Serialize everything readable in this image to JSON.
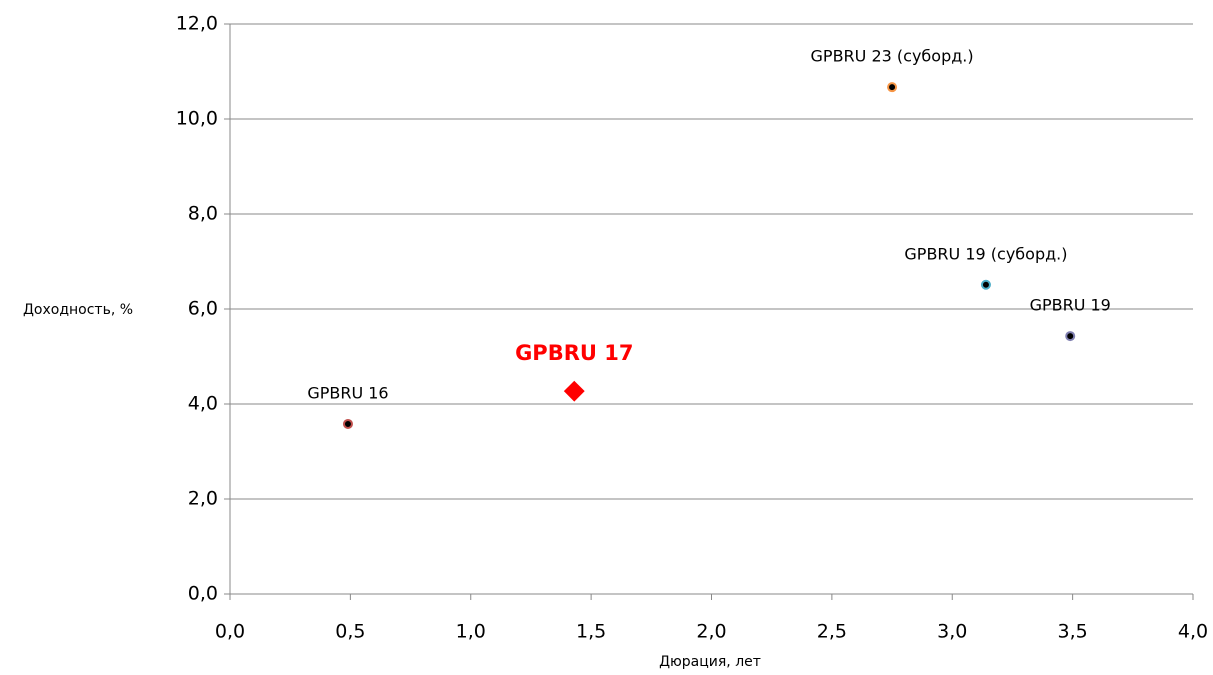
{
  "chart_data": {
    "type": "scatter",
    "x_label": "Дюрация, лет",
    "y_label": "Доходность, %",
    "xlim": [
      0,
      4
    ],
    "ylim": [
      0,
      12
    ],
    "xticks": [
      {
        "value": 0,
        "label": "0,0"
      },
      {
        "value": 0.5,
        "label": "0,5"
      },
      {
        "value": 1,
        "label": "1,0"
      },
      {
        "value": 1.5,
        "label": "1,5"
      },
      {
        "value": 2,
        "label": "2,0"
      },
      {
        "value": 2.5,
        "label": "2,5"
      },
      {
        "value": 3,
        "label": "3,0"
      },
      {
        "value": 3.5,
        "label": "3,5"
      },
      {
        "value": 4,
        "label": "4,0"
      }
    ],
    "yticks": [
      {
        "value": 0,
        "label": "0,0"
      },
      {
        "value": 2,
        "label": "2,0"
      },
      {
        "value": 4,
        "label": "4,0"
      },
      {
        "value": 6,
        "label": "6,0"
      },
      {
        "value": 8,
        "label": "8,0"
      },
      {
        "value": 10,
        "label": "10,0"
      },
      {
        "value": 12,
        "label": "12,0"
      }
    ],
    "grid": true,
    "series": [
      {
        "name": "GPBRU 16",
        "x": [
          0.49
        ],
        "values": [
          3.58
        ],
        "marker": "circle",
        "color": "#000000",
        "edge_color": "#c0504d"
      },
      {
        "name": "GPBRU 17",
        "x": [
          1.43
        ],
        "values": [
          4.27
        ],
        "marker": "diamond",
        "color": "#ff0000",
        "edge_color": "#ff0000",
        "highlight": true
      },
      {
        "name": "GPBRU 23 (суборд.)",
        "x": [
          2.75
        ],
        "values": [
          10.67
        ],
        "marker": "circle",
        "color": "#000000",
        "edge_color": "#f79646"
      },
      {
        "name": "GPBRU 19 (суборд.)",
        "x": [
          3.14
        ],
        "values": [
          6.51
        ],
        "marker": "circle",
        "color": "#000000",
        "edge_color": "#4bacc6"
      },
      {
        "name": "GPBRU 19",
        "x": [
          3.49
        ],
        "values": [
          5.43
        ],
        "marker": "circle",
        "color": "#000000",
        "edge_color": "#7f7fb0"
      }
    ]
  }
}
